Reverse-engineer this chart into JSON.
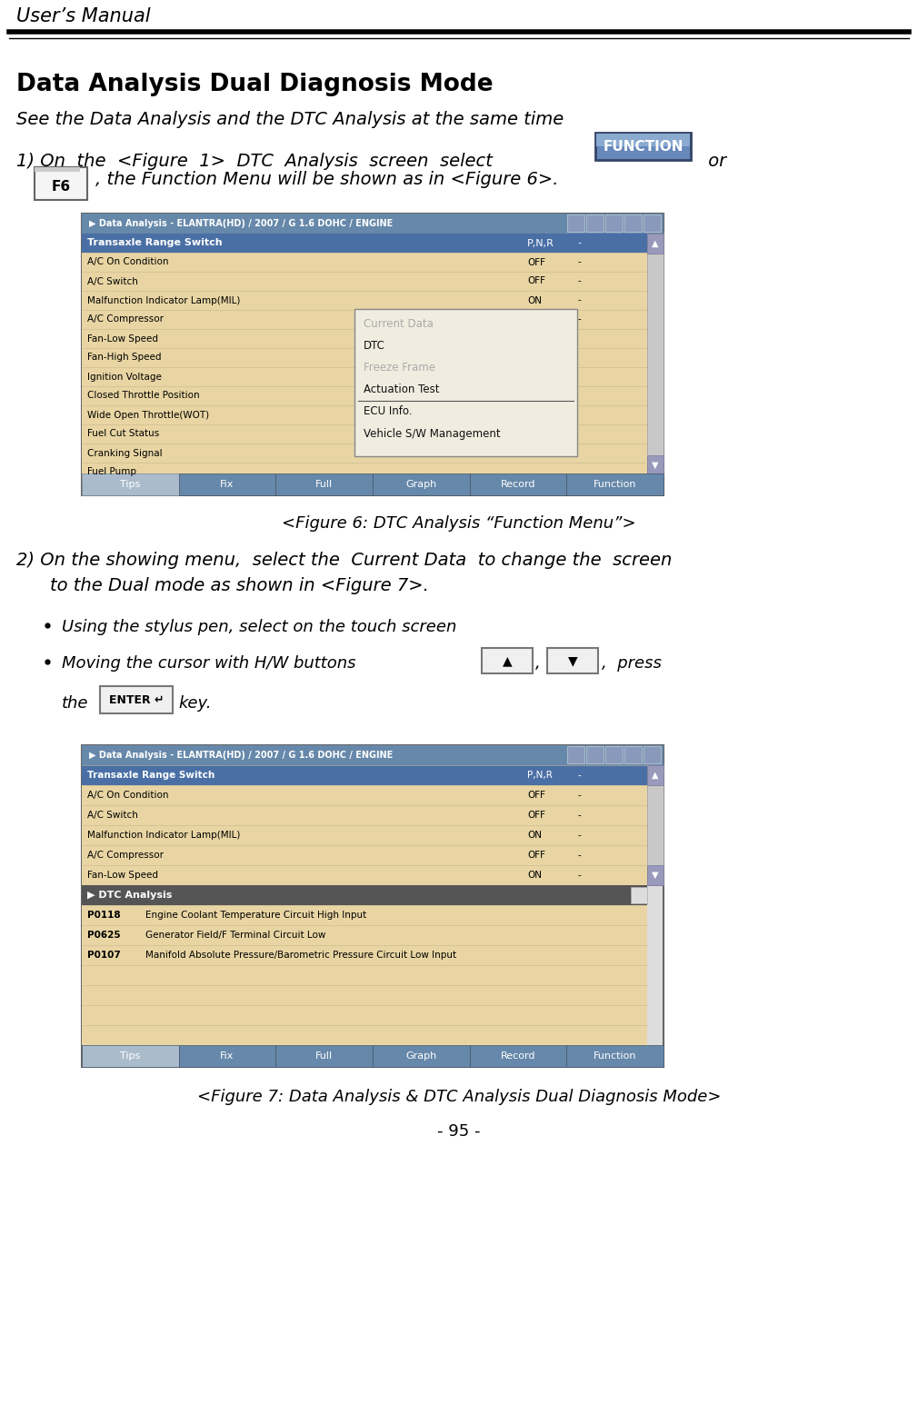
{
  "title_header": "User’s Manual",
  "section_title": "Data Analysis Dual Diagnosis Mode",
  "subtitle": "See the Data Analysis and the DTC Analysis at the same time",
  "para1_cont": ", the Function Menu will be shown as in <Figure 6>.",
  "para1_f6": "F6",
  "fig6_caption": "<Figure 6: DTC Analysis “Function Menu”>",
  "para2_line1": "2) On the showing menu, select the Current Data to change the screen",
  "para2_line2": "to the Dual mode as shown in <Figure 7>.",
  "bullet1": "Using the stylus pen, select on the touch screen",
  "bullet2": "Moving the cursor with H/W buttons",
  "bullet2_press": ", press",
  "bullet2c_the": "the",
  "bullet2c_key": "key.",
  "fig7_caption": "<Figure 7: Data Analysis & DTC Analysis Dual Diagnosis Mode>",
  "page_num": "- 95 -",
  "fig1_title": "▶ Data Analysis - ELANTRA(HD) / 2007 / G 1.6 DOHC / ENGINE",
  "fig1_header_bg": "#5577aa",
  "fig1_row_highlight": "#4a6fa5",
  "fig1_row_bg": "#e8d5a3",
  "fig1_menu_bg": "#f0ede0",
  "fig1_bottom_bg": "#7a9cc8",
  "fig1_rows": [
    [
      "Transaxle Range Switch",
      "P,N,R",
      "-"
    ],
    [
      "A/C On Condition",
      "OFF",
      "-"
    ],
    [
      "A/C Switch",
      "OFF",
      "-"
    ],
    [
      "Malfunction Indicator Lamp(MIL)",
      "ON",
      "-"
    ],
    [
      "A/C Compressor",
      "OFF",
      "-"
    ],
    [
      "Fan-Low Speed",
      "",
      ""
    ],
    [
      "Fan-High Speed",
      "",
      ""
    ],
    [
      "Ignition Voltage",
      "",
      ""
    ],
    [
      "Closed Throttle Position",
      "",
      ""
    ],
    [
      "Wide Open Throttle(WOT)",
      "",
      ""
    ],
    [
      "Fuel Cut Status",
      "",
      ""
    ],
    [
      "Cranking Signal",
      "",
      ""
    ],
    [
      "Fuel Pump",
      "",
      ""
    ]
  ],
  "fig1_menu_items": [
    "Current Data",
    "DTC",
    "Freeze Frame",
    "Actuation Test",
    "ECU Info.",
    "Vehicle S/W Management"
  ],
  "fig1_menu_disabled": [
    0,
    2
  ],
  "fig1_bottom_buttons": [
    "Tips",
    "Fix",
    "Full",
    "Graph",
    "Record",
    "Function"
  ],
  "fig7_title": "▶ Data Analysis - ELANTRA(HD) / 2007 / G 1.6 DOHC / ENGINE",
  "fig7_rows": [
    [
      "Transaxle Range Switch",
      "P,N,R",
      "-"
    ],
    [
      "A/C On Condition",
      "OFF",
      "-"
    ],
    [
      "A/C Switch",
      "OFF",
      "-"
    ],
    [
      "Malfunction Indicator Lamp(MIL)",
      "ON",
      "-"
    ],
    [
      "A/C Compressor",
      "OFF",
      "-"
    ],
    [
      "Fan-Low Speed",
      "ON",
      "-"
    ]
  ],
  "fig7_dtc_header": "▶ DTC Analysis",
  "fig7_dtc_rows": [
    [
      "P0118",
      "Engine Coolant Temperature Circuit High Input"
    ],
    [
      "P0625",
      "Generator Field/F Terminal Circuit Low"
    ],
    [
      "P0107",
      "Manifold Absolute Pressure/Barometric Pressure Circuit Low Input"
    ]
  ],
  "fig7_extra_rows": 4,
  "fig7_bottom_buttons": [
    "Tips",
    "Fix",
    "Full",
    "Graph",
    "Record",
    "Function"
  ],
  "function_btn_color": "#6080aa",
  "function_btn_text": "FUNCTION"
}
